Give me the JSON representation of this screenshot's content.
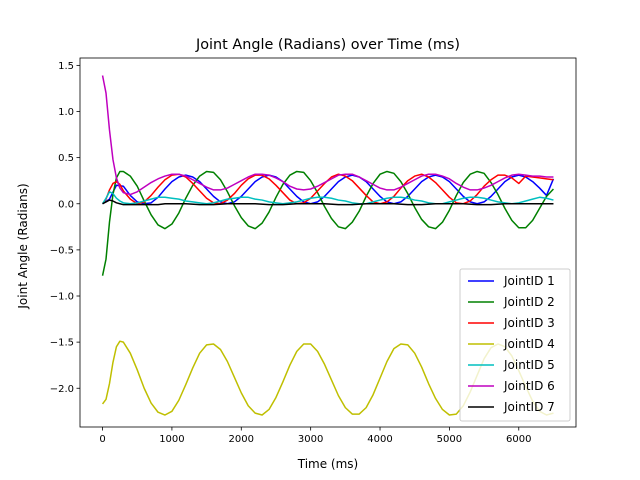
{
  "chart_data": {
    "type": "line",
    "title": "Joint Angle (Radians) over Time (ms)",
    "xlabel": "Time (ms)",
    "ylabel": "Joint Angle (Radians)",
    "xlim": [
      -325,
      6825
    ],
    "ylim": [
      -2.42,
      1.58
    ],
    "xticks": [
      0,
      1000,
      2000,
      3000,
      4000,
      5000,
      6000
    ],
    "xtick_labels": [
      "0",
      "1000",
      "2000",
      "3000",
      "4000",
      "5000",
      "6000"
    ],
    "yticks": [
      1.5,
      1.0,
      0.5,
      0.0,
      -0.5,
      -1.0,
      -1.5,
      -2.0
    ],
    "ytick_labels": [
      "1.5",
      "1.0",
      "0.5",
      "0.0",
      "−0.5",
      "−1.0",
      "−1.5",
      "−2.0"
    ],
    "grid": false,
    "legend_position": "lower-right",
    "series": [
      {
        "name": "JointID 1",
        "color": "#0000ff",
        "x": [
          0,
          100,
          200,
          300,
          400,
          500,
          600,
          700,
          800,
          900,
          1000,
          1100,
          1200,
          1300,
          1400,
          1500,
          1600,
          1700,
          1800,
          1900,
          2000,
          2100,
          2200,
          2300,
          2400,
          2500,
          2600,
          2700,
          2800,
          2900,
          3000,
          3100,
          3200,
          3300,
          3400,
          3500,
          3600,
          3700,
          3800,
          3900,
          4000,
          4100,
          4200,
          4300,
          4400,
          4500,
          4600,
          4700,
          4800,
          4900,
          5000,
          5100,
          5200,
          5300,
          5400,
          5500,
          5600,
          5700,
          5800,
          5900,
          6000,
          6100,
          6200,
          6300,
          6400,
          6500
        ],
        "y": [
          0.0,
          0.05,
          0.2,
          0.19,
          0.09,
          0.02,
          0.0,
          0.01,
          0.07,
          0.16,
          0.24,
          0.29,
          0.31,
          0.29,
          0.24,
          0.16,
          0.08,
          0.02,
          0.0,
          0.02,
          0.08,
          0.16,
          0.24,
          0.29,
          0.31,
          0.29,
          0.24,
          0.16,
          0.08,
          0.02,
          0.0,
          0.02,
          0.08,
          0.16,
          0.24,
          0.29,
          0.31,
          0.29,
          0.24,
          0.16,
          0.08,
          0.02,
          0.0,
          0.02,
          0.08,
          0.16,
          0.24,
          0.29,
          0.31,
          0.29,
          0.24,
          0.16,
          0.08,
          0.02,
          0.0,
          0.02,
          0.08,
          0.16,
          0.24,
          0.29,
          0.31,
          0.29,
          0.24,
          0.17,
          0.09,
          0.27
        ]
      },
      {
        "name": "JointID 2",
        "color": "#008000",
        "x": [
          0,
          50,
          100,
          150,
          200,
          250,
          300,
          400,
          500,
          600,
          700,
          800,
          900,
          1000,
          1100,
          1200,
          1300,
          1400,
          1500,
          1600,
          1700,
          1800,
          1900,
          2000,
          2100,
          2200,
          2300,
          2400,
          2500,
          2600,
          2700,
          2800,
          2900,
          3000,
          3100,
          3200,
          3300,
          3400,
          3500,
          3600,
          3700,
          3800,
          3900,
          4000,
          4100,
          4200,
          4300,
          4400,
          4500,
          4600,
          4700,
          4800,
          4900,
          5000,
          5100,
          5200,
          5300,
          5400,
          5500,
          5600,
          5700,
          5800,
          5900,
          6000,
          6100,
          6200,
          6300,
          6400,
          6500
        ],
        "y": [
          -0.78,
          -0.6,
          -0.2,
          0.1,
          0.28,
          0.35,
          0.35,
          0.3,
          0.19,
          0.03,
          -0.12,
          -0.23,
          -0.27,
          -0.22,
          -0.1,
          0.06,
          0.2,
          0.3,
          0.35,
          0.34,
          0.26,
          0.13,
          -0.02,
          -0.15,
          -0.24,
          -0.27,
          -0.21,
          -0.09,
          0.07,
          0.21,
          0.31,
          0.35,
          0.34,
          0.25,
          0.12,
          -0.03,
          -0.16,
          -0.25,
          -0.27,
          -0.2,
          -0.08,
          0.08,
          0.22,
          0.32,
          0.35,
          0.33,
          0.24,
          0.11,
          -0.04,
          -0.17,
          -0.25,
          -0.27,
          -0.2,
          -0.07,
          0.09,
          0.23,
          0.32,
          0.35,
          0.33,
          0.23,
          0.1,
          -0.05,
          -0.18,
          -0.26,
          -0.26,
          -0.18,
          -0.05,
          0.08,
          0.16
        ]
      },
      {
        "name": "JointID 3",
        "color": "#ff0000",
        "x": [
          0,
          50,
          100,
          150,
          200,
          250,
          300,
          400,
          500,
          600,
          700,
          800,
          900,
          1000,
          1100,
          1200,
          1300,
          1400,
          1500,
          1600,
          1700,
          1800,
          1900,
          2000,
          2100,
          2200,
          2300,
          2400,
          2500,
          2600,
          2700,
          2800,
          2900,
          3000,
          3100,
          3200,
          3300,
          3400,
          3500,
          3600,
          3700,
          3800,
          3900,
          4000,
          4100,
          4200,
          4300,
          4400,
          4500,
          4600,
          4700,
          4800,
          4900,
          5000,
          5100,
          5200,
          5300,
          5400,
          5500,
          5600,
          5700,
          5800,
          5900,
          6000,
          6100,
          6200,
          6300,
          6400,
          6500
        ],
        "y": [
          0.0,
          0.05,
          0.15,
          0.22,
          0.24,
          0.21,
          0.14,
          0.05,
          0.0,
          0.02,
          0.09,
          0.18,
          0.26,
          0.31,
          0.32,
          0.29,
          0.22,
          0.14,
          0.06,
          0.01,
          0.0,
          0.04,
          0.11,
          0.2,
          0.27,
          0.31,
          0.31,
          0.27,
          0.2,
          0.12,
          0.04,
          0.0,
          0.01,
          0.06,
          0.14,
          0.22,
          0.29,
          0.32,
          0.3,
          0.25,
          0.17,
          0.09,
          0.02,
          0.0,
          0.02,
          0.08,
          0.17,
          0.25,
          0.3,
          0.32,
          0.29,
          0.23,
          0.15,
          0.07,
          0.01,
          0.0,
          0.03,
          0.1,
          0.19,
          0.26,
          0.31,
          0.31,
          0.28,
          0.22,
          0.3,
          0.29,
          0.28,
          0.27,
          0.26
        ]
      },
      {
        "name": "JointID 4",
        "color": "#bfbf00",
        "x": [
          0,
          50,
          100,
          150,
          200,
          250,
          300,
          400,
          500,
          600,
          700,
          800,
          900,
          1000,
          1100,
          1200,
          1300,
          1400,
          1500,
          1600,
          1700,
          1800,
          1900,
          2000,
          2100,
          2200,
          2300,
          2400,
          2500,
          2600,
          2700,
          2800,
          2900,
          3000,
          3100,
          3200,
          3300,
          3400,
          3500,
          3600,
          3700,
          3800,
          3900,
          4000,
          4100,
          4200,
          4300,
          4400,
          4500,
          4600,
          4700,
          4800,
          4900,
          5000,
          5100,
          5200,
          5300,
          5400,
          5500,
          5600,
          5700,
          5800,
          5900,
          6000,
          6100,
          6200,
          6300,
          6400,
          6500
        ],
        "y": [
          -2.17,
          -2.12,
          -1.95,
          -1.72,
          -1.55,
          -1.49,
          -1.5,
          -1.62,
          -1.8,
          -2.0,
          -2.16,
          -2.26,
          -2.29,
          -2.25,
          -2.13,
          -1.96,
          -1.78,
          -1.62,
          -1.53,
          -1.52,
          -1.58,
          -1.71,
          -1.88,
          -2.05,
          -2.19,
          -2.27,
          -2.29,
          -2.23,
          -2.1,
          -1.93,
          -1.75,
          -1.6,
          -1.52,
          -1.52,
          -1.6,
          -1.74,
          -1.91,
          -2.08,
          -2.21,
          -2.28,
          -2.28,
          -2.21,
          -2.07,
          -1.89,
          -1.71,
          -1.57,
          -1.52,
          -1.53,
          -1.62,
          -1.77,
          -1.95,
          -2.11,
          -2.23,
          -2.29,
          -2.28,
          -2.19,
          -2.04,
          -1.86,
          -1.68,
          -1.56,
          -1.52,
          -1.55,
          -1.65,
          -1.81,
          -1.98,
          -2.14,
          -2.25,
          -2.29,
          -2.27
        ]
      },
      {
        "name": "JointID 5",
        "color": "#00bfbf",
        "x": [
          0,
          50,
          100,
          150,
          200,
          250,
          300,
          400,
          500,
          600,
          700,
          800,
          900,
          1000,
          1100,
          1200,
          1300,
          1400,
          1500,
          1600,
          1700,
          1800,
          1900,
          2000,
          2100,
          2200,
          2300,
          2400,
          2500,
          2600,
          2700,
          2800,
          2900,
          3000,
          3100,
          3200,
          3300,
          3400,
          3500,
          3600,
          3700,
          3800,
          3900,
          4000,
          4100,
          4200,
          4300,
          4400,
          4500,
          4600,
          4700,
          4800,
          4900,
          5000,
          5100,
          5200,
          5300,
          5400,
          5500,
          5600,
          5700,
          5800,
          5900,
          6000,
          6100,
          6200,
          6300,
          6400,
          6500
        ],
        "y": [
          0.0,
          0.06,
          0.13,
          0.11,
          0.06,
          0.03,
          0.01,
          0.0,
          0.01,
          0.03,
          0.05,
          0.07,
          0.07,
          0.06,
          0.05,
          0.03,
          0.02,
          0.01,
          0.0,
          0.01,
          0.03,
          0.05,
          0.06,
          0.07,
          0.07,
          0.05,
          0.04,
          0.02,
          0.01,
          0.0,
          0.01,
          0.02,
          0.04,
          0.06,
          0.07,
          0.07,
          0.06,
          0.04,
          0.03,
          0.01,
          0.0,
          0.0,
          0.02,
          0.04,
          0.06,
          0.07,
          0.07,
          0.06,
          0.04,
          0.03,
          0.01,
          0.0,
          0.0,
          0.02,
          0.04,
          0.06,
          0.07,
          0.07,
          0.06,
          0.04,
          0.02,
          0.01,
          0.0,
          0.01,
          0.03,
          0.05,
          0.07,
          0.06,
          0.04
        ]
      },
      {
        "name": "JointID 6",
        "color": "#bf00bf",
        "x": [
          0,
          50,
          100,
          150,
          200,
          250,
          300,
          400,
          500,
          600,
          700,
          800,
          900,
          1000,
          1100,
          1200,
          1300,
          1400,
          1500,
          1600,
          1700,
          1800,
          1900,
          2000,
          2100,
          2200,
          2300,
          2400,
          2500,
          2600,
          2700,
          2800,
          2900,
          3000,
          3100,
          3200,
          3300,
          3400,
          3500,
          3600,
          3700,
          3800,
          3900,
          4000,
          4100,
          4200,
          4300,
          4400,
          4500,
          4600,
          4700,
          4800,
          4900,
          5000,
          5100,
          5200,
          5300,
          5400,
          5500,
          5600,
          5700,
          5800,
          5900,
          6000,
          6100,
          6200,
          6300,
          6400,
          6500
        ],
        "y": [
          1.39,
          1.2,
          0.8,
          0.48,
          0.28,
          0.17,
          0.12,
          0.1,
          0.13,
          0.18,
          0.23,
          0.27,
          0.3,
          0.32,
          0.32,
          0.3,
          0.26,
          0.22,
          0.18,
          0.15,
          0.15,
          0.17,
          0.21,
          0.25,
          0.29,
          0.32,
          0.32,
          0.31,
          0.28,
          0.24,
          0.19,
          0.16,
          0.15,
          0.16,
          0.19,
          0.23,
          0.27,
          0.31,
          0.32,
          0.32,
          0.29,
          0.25,
          0.21,
          0.17,
          0.15,
          0.15,
          0.18,
          0.22,
          0.26,
          0.3,
          0.32,
          0.32,
          0.3,
          0.27,
          0.22,
          0.18,
          0.15,
          0.15,
          0.17,
          0.2,
          0.24,
          0.28,
          0.31,
          0.32,
          0.31,
          0.3,
          0.3,
          0.29,
          0.29
        ]
      },
      {
        "name": "JointID 7",
        "color": "#000000",
        "x": [
          0,
          50,
          100,
          150,
          200,
          250,
          300,
          400,
          500,
          600,
          700,
          800,
          900,
          1000,
          1200,
          1400,
          1600,
          1800,
          2000,
          2200,
          2400,
          2600,
          2800,
          3000,
          3200,
          3400,
          3600,
          3800,
          4000,
          4200,
          4400,
          4600,
          4800,
          5000,
          5200,
          5400,
          5600,
          5800,
          6000,
          6200,
          6400,
          6500
        ],
        "y": [
          0.0,
          0.02,
          0.04,
          0.03,
          0.01,
          0.0,
          -0.01,
          -0.01,
          -0.01,
          -0.01,
          -0.01,
          -0.01,
          0.0,
          0.0,
          0.0,
          -0.01,
          -0.01,
          0.0,
          0.0,
          0.0,
          -0.01,
          -0.01,
          0.0,
          0.0,
          0.0,
          -0.01,
          -0.01,
          0.0,
          0.0,
          0.0,
          -0.01,
          -0.01,
          0.0,
          0.0,
          0.0,
          -0.01,
          -0.01,
          0.0,
          0.0,
          0.0,
          0.0,
          0.0
        ]
      }
    ]
  }
}
